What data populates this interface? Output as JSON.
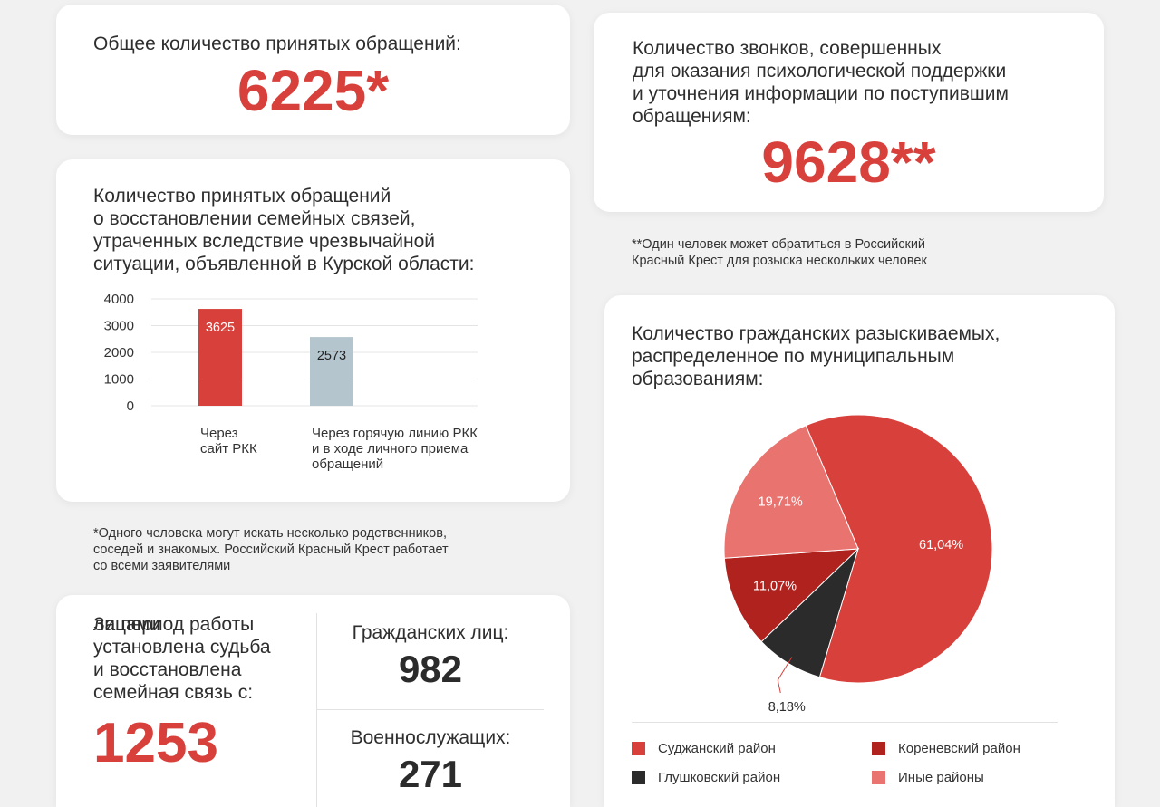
{
  "total": {
    "label": "Общее количество принятых обращений:",
    "value": "6225*"
  },
  "calls": {
    "label": "Количество звонков, совершенных\nдля оказания психологической поддержки\nи уточнения информации по поступившим\nобращениям:",
    "value": "9628**"
  },
  "note_double": "**Один человек может обратиться в Российский\nКрасный Крест для розыска нескольких человек",
  "restore": {
    "title": "Количество принятых обращений\nо восстановлении семейных связей,\nутраченных вследствие чрезвычайной\nситуации, объявленной в Курской области:"
  },
  "note_single": "*Одного человека могут искать несколько родственников,\nсоседей и знакомых. Российский Красный Крест работает\nсо всеми заявителями",
  "chart_data": [
    {
      "type": "bar",
      "title": "Количество принятых обращений о восстановлении семейных связей, утраченных вследствие чрезвычайной ситуации, объявленной в Курской области:",
      "categories": [
        [
          "Через",
          "сайт РКК"
        ],
        [
          "Через горячую линию РКК",
          "и в ходе личного приема",
          "обращений"
        ]
      ],
      "values": [
        3625,
        2573
      ],
      "value_labels": [
        "3625",
        "2573"
      ],
      "colors": [
        "#d8403b",
        "#b5c5cd"
      ],
      "label_colors": [
        "#ffffff",
        "#222222"
      ],
      "yticks": [
        0,
        1000,
        2000,
        3000,
        4000
      ],
      "ylim": [
        0,
        4000
      ],
      "grid": true
    },
    {
      "type": "pie",
      "title": "Количество гражданских разыскиваемых,\nраспределенное по муниципальным\nобразованиям:",
      "slices": [
        {
          "name": "Суджанский район",
          "value": 61.04,
          "label": "61,04%",
          "color": "#d8403b",
          "label_color": "#ffffff"
        },
        {
          "name": "Глушковский район",
          "value": 8.18,
          "label": "8,18%",
          "color": "#2b2b2b",
          "label_color": "#2e2e2e"
        },
        {
          "name": "Кореневский район",
          "value": 11.07,
          "label": "11,07%",
          "color": "#b0221e",
          "label_color": "#ffffff"
        },
        {
          "name": "Иные районы",
          "value": 19.71,
          "label": "19,71%",
          "color": "#e8736f",
          "label_color": "#ffffff"
        }
      ],
      "legend": [
        {
          "label": "Суджанский район",
          "color": "#d8403b"
        },
        {
          "label": "Кореневский район",
          "color": "#b0221e"
        },
        {
          "label": "Глушковский район",
          "color": "#2b2b2b"
        },
        {
          "label": "Иные районы",
          "color": "#e8736f"
        }
      ]
    }
  ],
  "fate": {
    "label": "За период работы\nустановлена судьба\nи восстановлена\nсемейная связь с:",
    "total": "1253",
    "unit": "лицами",
    "civil_label": "Гражданских лиц:",
    "civil_value": "982",
    "military_label": "Военнослужащих:",
    "military_value": "271"
  }
}
